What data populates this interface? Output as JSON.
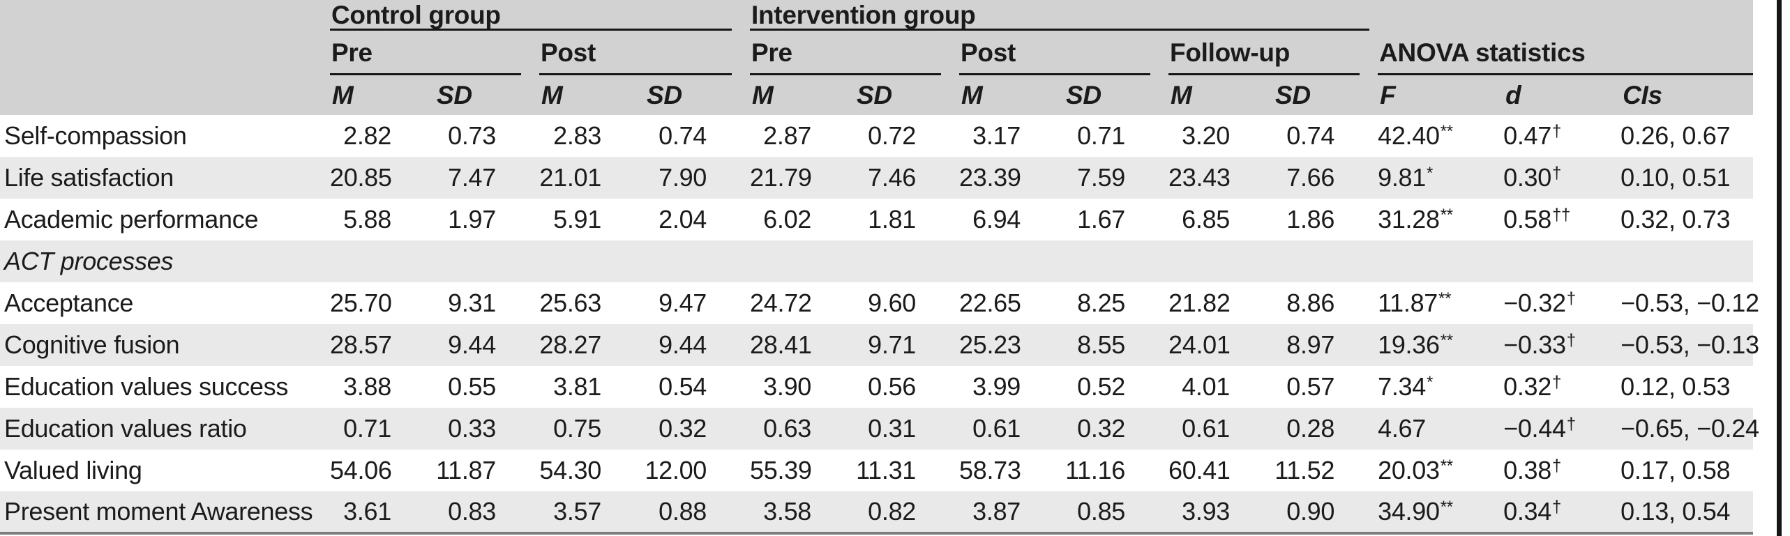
{
  "table": {
    "groups": [
      "Control group",
      "Intervention group"
    ],
    "subgroups": [
      "Pre",
      "Post",
      "Pre",
      "Post",
      "Follow-up",
      "ANOVA statistics"
    ],
    "col_headers": [
      "M",
      "SD",
      "M",
      "SD",
      "M",
      "SD",
      "M",
      "SD",
      "M",
      "SD",
      "F",
      "d",
      "CIs"
    ],
    "rows": [
      {
        "label": "Self-compassion",
        "cells": [
          "2.82",
          "0.73",
          "2.83",
          "0.74",
          "2.87",
          "0.72",
          "3.17",
          "0.71",
          "3.20",
          "0.74",
          {
            "v": "42.40",
            "sup": "**"
          },
          {
            "v": "0.47",
            "sup": "†"
          },
          "0.26, 0.67"
        ]
      },
      {
        "label": "Life satisfaction",
        "cells": [
          "20.85",
          "7.47",
          "21.01",
          "7.90",
          "21.79",
          "7.46",
          "23.39",
          "7.59",
          "23.43",
          "7.66",
          {
            "v": "9.81",
            "sup": "*"
          },
          {
            "v": "0.30",
            "sup": "†"
          },
          "0.10, 0.51"
        ]
      },
      {
        "label": "Academic performance",
        "cells": [
          "5.88",
          "1.97",
          "5.91",
          "2.04",
          "6.02",
          "1.81",
          "6.94",
          "1.67",
          "6.85",
          "1.86",
          {
            "v": "31.28",
            "sup": "**"
          },
          {
            "v": "0.58",
            "sup": "††"
          },
          "0.32, 0.73"
        ]
      },
      {
        "label": "ACT processes",
        "section": true,
        "cells": []
      },
      {
        "label": "Acceptance",
        "cells": [
          "25.70",
          "9.31",
          "25.63",
          "9.47",
          "24.72",
          "9.60",
          "22.65",
          "8.25",
          "21.82",
          "8.86",
          {
            "v": "11.87",
            "sup": "**"
          },
          {
            "v": "−0.32",
            "sup": "†"
          },
          "−0.53, −0.12"
        ]
      },
      {
        "label": "Cognitive fusion",
        "cells": [
          "28.57",
          "9.44",
          "28.27",
          "9.44",
          "28.41",
          "9.71",
          "25.23",
          "8.55",
          "24.01",
          "8.97",
          {
            "v": "19.36",
            "sup": "**"
          },
          {
            "v": "−0.33",
            "sup": "†"
          },
          "−0.53, −0.13"
        ]
      },
      {
        "label": "Education values success",
        "cells": [
          "3.88",
          "0.55",
          "3.81",
          "0.54",
          "3.90",
          "0.56",
          "3.99",
          "0.52",
          "4.01",
          "0.57",
          {
            "v": "7.34",
            "sup": "*"
          },
          {
            "v": "0.32",
            "sup": "†"
          },
          "0.12, 0.53"
        ]
      },
      {
        "label": "Education values ratio",
        "cells": [
          "0.71",
          "0.33",
          "0.75",
          "0.32",
          "0.63",
          "0.31",
          "0.61",
          "0.32",
          "0.61",
          "0.28",
          {
            "v": "4.67",
            "sup": ""
          },
          {
            "v": "−0.44",
            "sup": "†"
          },
          "−0.65, −0.24"
        ]
      },
      {
        "label": "Valued living",
        "cells": [
          "54.06",
          "11.87",
          "54.30",
          "12.00",
          "55.39",
          "11.31",
          "58.73",
          "11.16",
          "60.41",
          "11.52",
          {
            "v": "20.03",
            "sup": "**"
          },
          {
            "v": "0.38",
            "sup": "†"
          },
          "0.17, 0.58"
        ]
      },
      {
        "label": "Present moment Awareness",
        "cells": [
          "3.61",
          "0.83",
          "3.57",
          "0.88",
          "3.58",
          "0.82",
          "3.87",
          "0.85",
          "3.93",
          "0.90",
          {
            "v": "34.90",
            "sup": "**"
          },
          {
            "v": "0.34",
            "sup": "†"
          },
          "0.13, 0.54"
        ]
      }
    ]
  },
  "colors": {
    "header_bg": "#d2d2d2",
    "row_alt_bg": "#e9e9e9",
    "text": "#1b1b1b",
    "rule": "#161616"
  }
}
